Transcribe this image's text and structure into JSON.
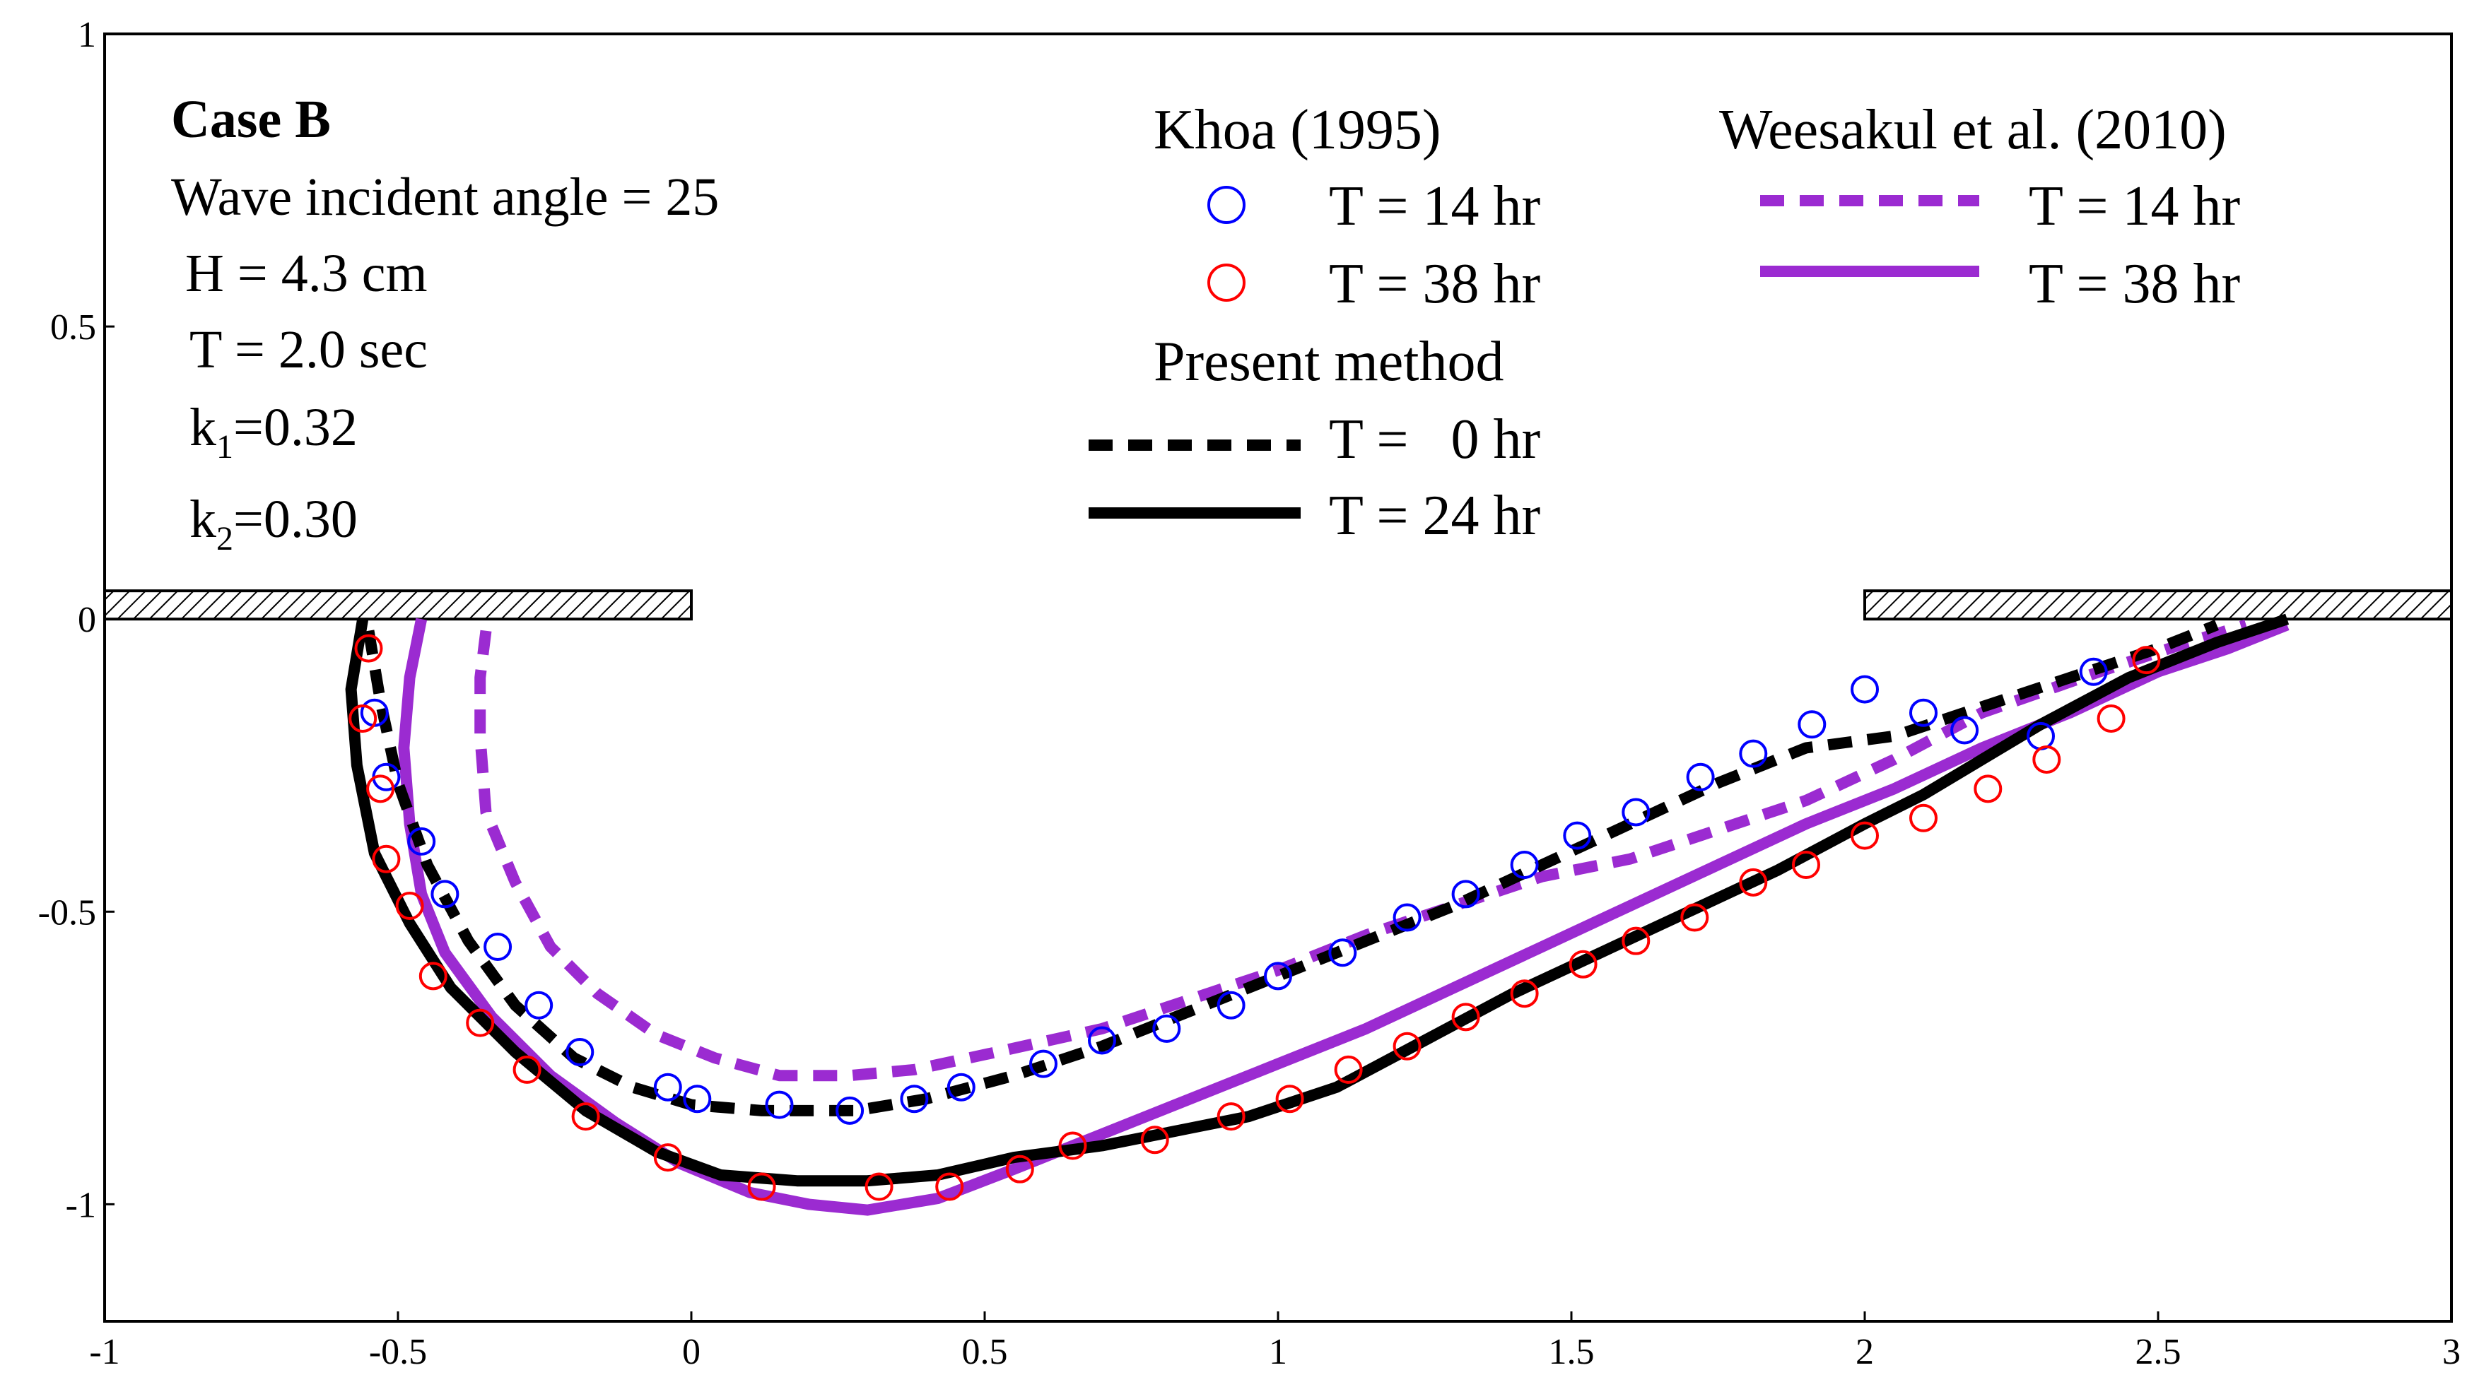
{
  "chart_data": {
    "type": "scatter",
    "xlim": [
      -1,
      3
    ],
    "ylim": [
      -1.2,
      1
    ],
    "x_ticks": [
      "-1",
      "-0.5",
      "0",
      "0.5",
      "1",
      "1.5",
      "2",
      "2.5",
      "3"
    ],
    "y_ticks": [
      "1",
      "0.5",
      "0",
      "-0.5",
      "-1"
    ],
    "x_tick_values": [
      -1,
      -0.5,
      0,
      0.5,
      1,
      1.5,
      2,
      2.5,
      3
    ],
    "y_tick_values": [
      1,
      0.5,
      0,
      -0.5,
      -1
    ],
    "grid": false,
    "legend_position": "top-right",
    "breakwaters": [
      {
        "x": [
          -1,
          0
        ],
        "y": 0
      },
      {
        "x": [
          2,
          3
        ],
        "y": 0
      }
    ],
    "case_info": {
      "title_plain": "Case ",
      "title_bold": "B",
      "angle": "Wave incident angle = 25",
      "H": "H = 4.3 cm",
      "T": "T = 2.0 sec",
      "k1_label": "k",
      "k1_sub": "1",
      "k1_value": "=0.32",
      "k2_label": "k",
      "k2_sub": "2",
      "k2_value": "=0.30"
    },
    "legend": {
      "khoa_heading": "Khoa (1995)",
      "present_heading": "Present method",
      "weesakul_heading": "Weesakul et al. (2010)"
    },
    "series": [
      {
        "name": "T = 14 hr",
        "group": "Khoa (1995)",
        "style": "circle",
        "color": "#0000ff",
        "x": [
          -0.54,
          -0.52,
          -0.46,
          -0.42,
          -0.33,
          -0.26,
          -0.19,
          -0.04,
          0.01,
          0.15,
          0.27,
          0.38,
          0.46,
          0.6,
          0.7,
          0.81,
          0.92,
          1.0,
          1.11,
          1.22,
          1.32,
          1.42,
          1.51,
          1.61,
          1.72,
          1.81,
          1.91,
          2.0,
          2.1,
          2.17,
          2.3,
          2.39
        ],
        "y": [
          -0.16,
          -0.27,
          -0.38,
          -0.47,
          -0.56,
          -0.66,
          -0.74,
          -0.8,
          -0.82,
          -0.83,
          -0.84,
          -0.82,
          -0.8,
          -0.76,
          -0.72,
          -0.7,
          -0.66,
          -0.61,
          -0.57,
          -0.51,
          -0.47,
          -0.42,
          -0.37,
          -0.33,
          -0.27,
          -0.23,
          -0.18,
          -0.12,
          -0.16,
          -0.19,
          -0.2,
          -0.09
        ]
      },
      {
        "name": "T = 38 hr",
        "group": "Khoa (1995)",
        "style": "circle",
        "color": "#ff0000",
        "x": [
          -0.55,
          -0.56,
          -0.53,
          -0.52,
          -0.48,
          -0.44,
          -0.36,
          -0.28,
          -0.18,
          -0.04,
          0.12,
          0.32,
          0.44,
          0.56,
          0.65,
          0.79,
          0.92,
          1.02,
          1.12,
          1.22,
          1.32,
          1.42,
          1.52,
          1.61,
          1.71,
          1.81,
          1.9,
          2.0,
          2.1,
          2.21,
          2.31,
          2.42,
          2.48
        ],
        "y": [
          -0.05,
          -0.17,
          -0.29,
          -0.41,
          -0.49,
          -0.61,
          -0.69,
          -0.77,
          -0.85,
          -0.92,
          -0.97,
          -0.97,
          -0.97,
          -0.94,
          -0.9,
          -0.89,
          -0.85,
          -0.82,
          -0.77,
          -0.73,
          -0.68,
          -0.64,
          -0.59,
          -0.55,
          -0.51,
          -0.45,
          -0.42,
          -0.37,
          -0.34,
          -0.29,
          -0.24,
          -0.17,
          -0.07
        ]
      },
      {
        "name": "T =   0 hr",
        "group": "Present method",
        "style": "dashed",
        "color": "#000000",
        "x": [
          -0.55,
          -0.53,
          -0.5,
          -0.45,
          -0.38,
          -0.3,
          -0.2,
          -0.1,
          0.0,
          0.12,
          0.28,
          0.4,
          0.55,
          0.7,
          0.85,
          1.0,
          1.15,
          1.3,
          1.45,
          1.6,
          1.75,
          1.9,
          2.05,
          2.2,
          2.35,
          2.5,
          2.6
        ],
        "y": [
          -0.02,
          -0.14,
          -0.28,
          -0.42,
          -0.55,
          -0.66,
          -0.75,
          -0.8,
          -0.83,
          -0.84,
          -0.84,
          -0.82,
          -0.78,
          -0.73,
          -0.67,
          -0.61,
          -0.55,
          -0.49,
          -0.42,
          -0.35,
          -0.28,
          -0.22,
          -0.2,
          -0.15,
          -0.1,
          -0.05,
          -0.01
        ]
      },
      {
        "name": "T = 24 hr",
        "group": "Present method",
        "style": "solid",
        "color": "#000000",
        "x": [
          -0.56,
          -0.58,
          -0.57,
          -0.54,
          -0.48,
          -0.41,
          -0.3,
          -0.18,
          -0.06,
          0.05,
          0.18,
          0.3,
          0.42,
          0.55,
          0.7,
          0.85,
          0.95,
          1.1,
          1.25,
          1.4,
          1.55,
          1.7,
          1.85,
          2.0,
          2.1,
          2.2,
          2.3,
          2.45,
          2.6,
          2.72
        ],
        "y": [
          0.0,
          -0.12,
          -0.25,
          -0.4,
          -0.52,
          -0.63,
          -0.74,
          -0.84,
          -0.91,
          -0.95,
          -0.96,
          -0.96,
          -0.95,
          -0.92,
          -0.9,
          -0.87,
          -0.85,
          -0.8,
          -0.72,
          -0.64,
          -0.57,
          -0.5,
          -0.43,
          -0.35,
          -0.3,
          -0.24,
          -0.18,
          -0.1,
          -0.04,
          0.0
        ]
      },
      {
        "name": "T = 14 hr",
        "group": "Weesakul et al. (2010)",
        "style": "dashed",
        "color": "#9b2bd1",
        "x": [
          -0.35,
          -0.36,
          -0.36,
          -0.35,
          -0.3,
          -0.24,
          -0.16,
          -0.06,
          0.04,
          0.15,
          0.27,
          0.38,
          0.52,
          0.7,
          0.85,
          1.0,
          1.15,
          1.3,
          1.45,
          1.6,
          1.75,
          1.9,
          2.05,
          2.2,
          2.4,
          2.55,
          2.65
        ],
        "y": [
          -0.02,
          -0.1,
          -0.2,
          -0.33,
          -0.45,
          -0.56,
          -0.64,
          -0.71,
          -0.75,
          -0.78,
          -0.78,
          -0.77,
          -0.74,
          -0.7,
          -0.65,
          -0.6,
          -0.54,
          -0.49,
          -0.44,
          -0.41,
          -0.36,
          -0.31,
          -0.24,
          -0.16,
          -0.09,
          -0.04,
          -0.01
        ]
      },
      {
        "name": "T = 38 hr",
        "group": "Weesakul et al. (2010)",
        "style": "solid",
        "color": "#9b2bd1",
        "x": [
          -0.46,
          -0.48,
          -0.49,
          -0.48,
          -0.46,
          -0.42,
          -0.34,
          -0.24,
          -0.13,
          -0.02,
          0.1,
          0.2,
          0.3,
          0.42,
          0.55,
          0.7,
          0.85,
          1.0,
          1.15,
          1.3,
          1.45,
          1.6,
          1.75,
          1.9,
          2.05,
          2.2,
          2.35,
          2.5,
          2.62,
          2.72
        ],
        "y": [
          0.0,
          -0.1,
          -0.22,
          -0.35,
          -0.47,
          -0.57,
          -0.68,
          -0.78,
          -0.86,
          -0.93,
          -0.98,
          -1.0,
          -1.01,
          -0.99,
          -0.94,
          -0.88,
          -0.82,
          -0.76,
          -0.7,
          -0.63,
          -0.56,
          -0.49,
          -0.42,
          -0.35,
          -0.29,
          -0.22,
          -0.16,
          -0.09,
          -0.05,
          -0.01
        ]
      }
    ]
  }
}
